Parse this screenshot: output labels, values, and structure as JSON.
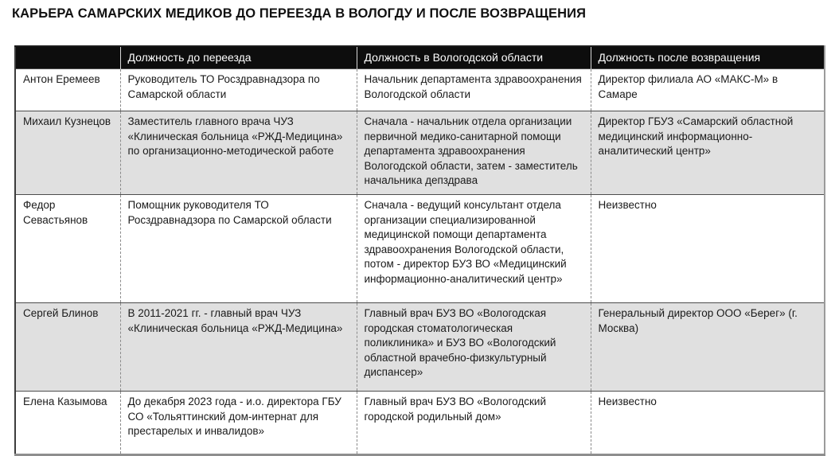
{
  "title": "КАРЬЕРА САМАРСКИХ МЕДИКОВ ДО ПЕРЕЕЗДА В ВОЛОГДУ И ПОСЛЕ ВОЗВРАЩЕНИЯ",
  "colors": {
    "header_bg": "#0d0d0d",
    "header_text": "#ffffff",
    "shaded_row_bg": "#e0e0e0",
    "row_bg": "#ffffff",
    "border_dark": "#4d4d4d",
    "border_dashed": "#8a8a8a"
  },
  "table": {
    "columns": [
      "",
      "Должность до переезда",
      "Должность в Вологодской области",
      "Должность после возвращения"
    ],
    "rows": [
      {
        "name": "Антон Еремеев",
        "before": "Руководитель ТО Росздравнадзора по Самарской области",
        "vologda": "Начальник департамента здравоохранения Вологодской области",
        "after": "Директор филиала АО «МАКС-М» в Самаре",
        "shaded": false
      },
      {
        "name": "Михаил Кузнецов",
        "before": "Заместитель главного врача ЧУЗ «Клиническая больница «РЖД-Медицина» по организационно-методической работе",
        "vologda": "Сначала - начальник отдела организации первичной медико-санитарной помощи департамента здравоохранения Вологодской области, затем - заместитель начальника депздрава",
        "after": "Директор ГБУЗ «Самарский областной медицинский информационно-аналитический центр»",
        "shaded": true
      },
      {
        "name": "Федор Севастьянов",
        "before": "Помощник руководителя ТО Росздравнадзора по Самарской области",
        "vologda": "Сначала - ведущий консультант отдела организации специализированной медицинской помощи департамента здравоохранения Вологодской области, потом - директор БУЗ ВО «Медицинский информационно-аналитический центр»",
        "after": "Неизвестно",
        "shaded": false
      },
      {
        "name": "Сергей Блинов",
        "before": "В 2011-2021 гг. - главный врач ЧУЗ «Клиническая больница «РЖД-Медицина»",
        "vologda": "Главный врач БУЗ ВО «Вологодская городская стоматологическая поликлиника» и БУЗ ВО «Вологодский областной врачебно-физкультурный диспансер»",
        "after": "Генеральный директор ООО «Берег» (г. Москва)",
        "shaded": true
      },
      {
        "name": "Елена Казымова",
        "before": "До декабря 2023 года - и.о. директора ГБУ СО «Тольяттинский дом-интернат для престарелых и инвалидов»",
        "vologda": "Главный врач БУЗ ВО «Вологодский городской родильный дом»",
        "after": "Неизвестно",
        "shaded": false
      }
    ]
  }
}
